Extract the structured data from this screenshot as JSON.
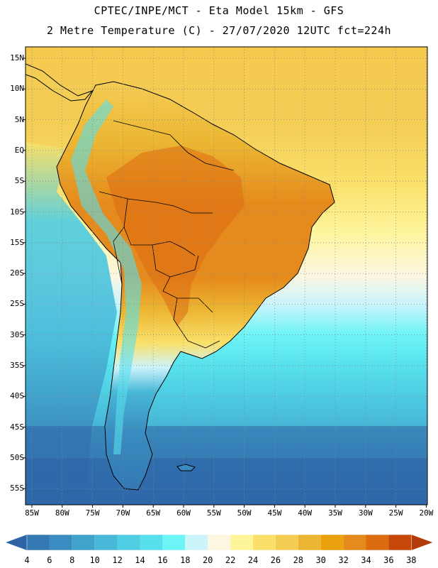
{
  "header": {
    "line1": "CPTEC/INPE/MCT -  Eta Model 15km - GFS",
    "line2": "2 Metre Temperature (C) - 27/07/2020 12UTC fct=224h"
  },
  "lat_axis": [
    "15N",
    "10N",
    "5N",
    "EQ",
    "5S",
    "10S",
    "15S",
    "20S",
    "25S",
    "30S",
    "35S",
    "40S",
    "45S",
    "50S",
    "55S"
  ],
  "lon_axis": [
    "85W",
    "80W",
    "75W",
    "70W",
    "65W",
    "60W",
    "55W",
    "50W",
    "45W",
    "40W",
    "35W",
    "30W",
    "25W",
    "20W"
  ],
  "colorbar": {
    "labels": [
      "4",
      "6",
      "8",
      "10",
      "12",
      "14",
      "16",
      "18",
      "20",
      "22",
      "24",
      "26",
      "28",
      "30",
      "32",
      "34",
      "36",
      "38"
    ],
    "colors": [
      "#2e64a6",
      "#3378b3",
      "#3a8cc0",
      "#41a2cc",
      "#48b8d8",
      "#4ecde3",
      "#57e0ec",
      "#6cf4f6",
      "#ccf4fb",
      "#fcf7e1",
      "#fef49a",
      "#fae06a",
      "#f4cd55",
      "#ecb632",
      "#eba00e",
      "#e58a1c",
      "#dc6c10",
      "#c5470a",
      "#b13c09"
    ]
  },
  "map": {
    "region": "South America",
    "lat_range": [
      -58,
      17
    ],
    "lon_range": [
      -86,
      -19
    ]
  }
}
